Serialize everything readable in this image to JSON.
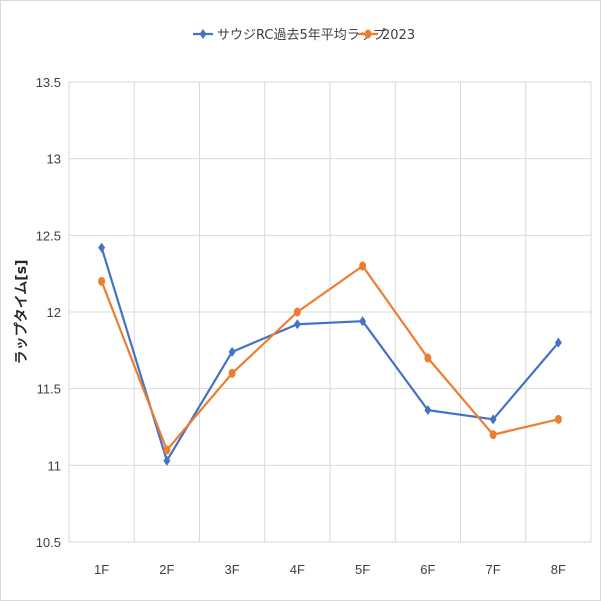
{
  "chart_data": {
    "type": "line",
    "categories": [
      "1F",
      "2F",
      "3F",
      "4F",
      "5F",
      "6F",
      "7F",
      "8F"
    ],
    "series": [
      {
        "name": "サウジRC過去5年平均ラップ",
        "color": "#4472c4",
        "marker": "diamond",
        "values": [
          12.42,
          11.03,
          11.74,
          11.92,
          11.94,
          11.36,
          11.3,
          11.8
        ]
      },
      {
        "name": "2023",
        "color": "#ed7d31",
        "marker": "circle",
        "values": [
          12.2,
          11.1,
          11.6,
          12.0,
          12.3,
          11.7,
          11.2,
          11.3
        ]
      }
    ],
    "ylabel": "ラップタイム[s]",
    "ylim": [
      10.5,
      13.5
    ],
    "yticks": [
      "10.5",
      "11",
      "11.5",
      "12",
      "12.5",
      "13",
      "13.5"
    ],
    "grid": true,
    "legend_position": "top"
  }
}
